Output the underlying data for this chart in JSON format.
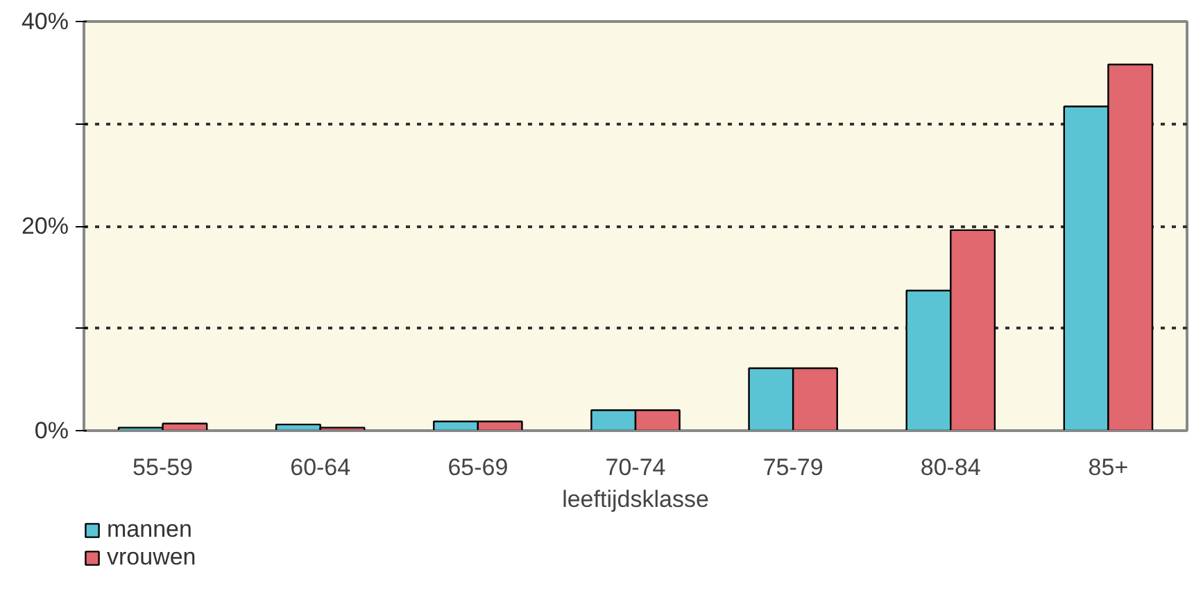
{
  "chart_data": {
    "type": "bar",
    "xlabel": "leeftijdsklasse",
    "categories": [
      "55-59",
      "60-64",
      "65-69",
      "70-74",
      "75-79",
      "80-84",
      "85+"
    ],
    "series": [
      {
        "name": "mannen",
        "color": "#5bc4d4",
        "values": [
          0.3,
          0.6,
          0.9,
          2.0,
          6.1,
          13.7,
          31.7
        ]
      },
      {
        "name": "vrouwen",
        "color": "#e0686e",
        "values": [
          0.7,
          0.3,
          0.9,
          2.0,
          6.1,
          19.6,
          35.8
        ]
      }
    ],
    "ylim": [
      0,
      40
    ],
    "yticks": [
      {
        "value": 0,
        "label": "0%"
      },
      {
        "value": 10,
        "label": null
      },
      {
        "value": 20,
        "label": "20%"
      },
      {
        "value": 30,
        "label": null
      },
      {
        "value": 40,
        "label": "40%"
      }
    ],
    "grid": "y",
    "legend": "bottom left"
  }
}
